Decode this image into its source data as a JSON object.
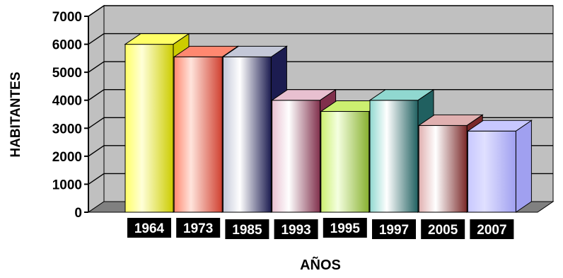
{
  "chart_data": {
    "type": "bar",
    "title": "",
    "xlabel": "AÑOS",
    "ylabel": "HABITANTES",
    "ylim": [
      0,
      7000
    ],
    "yticks": [
      0,
      1000,
      2000,
      3000,
      4000,
      5000,
      6000,
      7000
    ],
    "grid": true,
    "legend": "none",
    "style": "3d-columns",
    "categories": [
      "1964",
      "1973",
      "1985",
      "1993",
      "1995",
      "1997",
      "2005",
      "2007"
    ],
    "values": [
      6000,
      5550,
      5550,
      4000,
      3600,
      4000,
      3100,
      2900
    ],
    "bar_colors": [
      {
        "light": "#ffffd8",
        "mid": "#ffff66",
        "dark": "#cccc00"
      },
      {
        "light": "#ffe4dc",
        "mid": "#ff8870",
        "dark": "#d04030"
      },
      {
        "light": "#ffffff",
        "mid": "#c4c8d8",
        "dark": "#1c1c50"
      },
      {
        "light": "#ffffff",
        "mid": "#e8c0d0",
        "dark": "#80304c"
      },
      {
        "light": "#f4ffe0",
        "mid": "#ccf070",
        "dark": "#88b030"
      },
      {
        "light": "#ffffff",
        "mid": "#90d8d0",
        "dark": "#206060"
      },
      {
        "light": "#ffffff",
        "mid": "#e0b0b0",
        "dark": "#7a2828"
      },
      {
        "light": "#e0e0ff",
        "mid": "#c8c8ff",
        "dark": "#a0a0f0"
      }
    ],
    "wall_color": "#c0c0c0",
    "floor_color": "#808080"
  }
}
